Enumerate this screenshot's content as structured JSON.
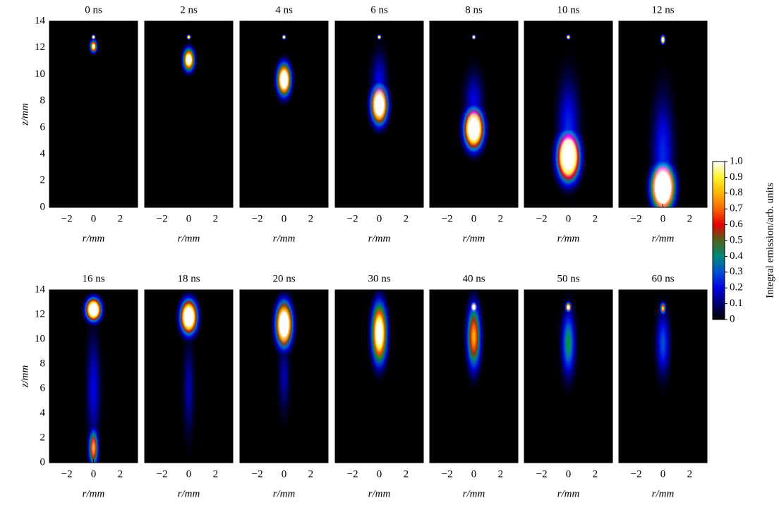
{
  "chart_data": [
    {
      "type": "heatmap",
      "title": "0 ns",
      "xlabel": "r/mm",
      "ylabel": "z/mm",
      "xlim": [
        -3.3,
        3.3
      ],
      "ylim": [
        0,
        14
      ],
      "xticks": [
        {
          "value": -2,
          "label": "−2"
        },
        0,
        2
      ],
      "yticks": [
        0,
        2,
        4,
        6,
        8,
        10,
        12,
        14
      ],
      "emission": [
        {
          "z": 12.8,
          "dz": 0.2,
          "dr": 0.12,
          "peak": 1.5
        },
        {
          "z": 12.1,
          "dz": 0.6,
          "dr": 0.25,
          "peak": 1.1
        }
      ]
    },
    {
      "type": "heatmap",
      "title": "2 ns",
      "xlabel": "r/mm",
      "xlim": [
        -3.3,
        3.3
      ],
      "ylim": [
        0,
        14
      ],
      "xticks": [
        {
          "value": -2,
          "label": "−2"
        },
        0,
        2
      ],
      "yticks": [
        0,
        2,
        4,
        6,
        8,
        10,
        12,
        14
      ],
      "emission": [
        {
          "z": 12.8,
          "dz": 0.2,
          "dr": 0.12,
          "peak": 1.5
        },
        {
          "z": 11.1,
          "dz": 1.1,
          "dr": 0.4,
          "peak": 1.3
        }
      ]
    },
    {
      "type": "heatmap",
      "title": "4 ns",
      "xlabel": "r/mm",
      "xlim": [
        -3.3,
        3.3
      ],
      "ylim": [
        0,
        14
      ],
      "xticks": [
        {
          "value": -2,
          "label": "−2"
        },
        0,
        2
      ],
      "yticks": [
        0,
        2,
        4,
        6,
        8,
        10,
        12,
        14
      ],
      "emission": [
        {
          "z": 12.8,
          "dz": 0.2,
          "dr": 0.12,
          "peak": 1.5
        },
        {
          "z": 9.6,
          "dz": 1.6,
          "dr": 0.5,
          "peak": 1.4
        }
      ]
    },
    {
      "type": "heatmap",
      "title": "6 ns",
      "xlabel": "r/mm",
      "xlim": [
        -3.3,
        3.3
      ],
      "ylim": [
        0,
        14
      ],
      "xticks": [
        {
          "value": -2,
          "label": "−2"
        },
        0,
        2
      ],
      "yticks": [
        0,
        2,
        4,
        6,
        8,
        10,
        12,
        14
      ],
      "emission": [
        {
          "z": 12.8,
          "dz": 0.2,
          "dr": 0.12,
          "peak": 1.5
        },
        {
          "z": 9.5,
          "dz": 3,
          "dr": 0.6,
          "peak": 0.2
        },
        {
          "z": 7.7,
          "dz": 1.9,
          "dr": 0.6,
          "peak": 1.5
        }
      ]
    },
    {
      "type": "heatmap",
      "title": "8 ns",
      "xlabel": "r/mm",
      "xlim": [
        -3.3,
        3.3
      ],
      "ylim": [
        0,
        14
      ],
      "xticks": [
        {
          "value": -2,
          "label": "−2"
        },
        0,
        2
      ],
      "yticks": [
        0,
        2,
        4,
        6,
        8,
        10,
        12,
        14
      ],
      "emission": [
        {
          "z": 12.8,
          "dz": 0.2,
          "dr": 0.12,
          "peak": 1.5
        },
        {
          "z": 8,
          "dz": 3,
          "dr": 0.7,
          "peak": 0.2
        },
        {
          "z": 5.9,
          "dz": 2,
          "dr": 0.7,
          "peak": 1.6
        }
      ]
    },
    {
      "type": "heatmap",
      "title": "10 ns",
      "xlabel": "r/mm",
      "xlim": [
        -3.3,
        3.3
      ],
      "ylim": [
        0,
        14
      ],
      "xticks": [
        {
          "value": -2,
          "label": "−2"
        },
        0,
        2
      ],
      "yticks": [
        0,
        2,
        4,
        6,
        8,
        10,
        12,
        14
      ],
      "emission": [
        {
          "z": 12.8,
          "dz": 0.2,
          "dr": 0.12,
          "peak": 1.5
        },
        {
          "z": 6,
          "dz": 5,
          "dr": 0.8,
          "peak": 0.25
        },
        {
          "z": 3.8,
          "dz": 2.4,
          "dr": 0.8,
          "peak": 1.7
        }
      ]
    },
    {
      "type": "heatmap",
      "title": "12 ns",
      "xlabel": "r/mm",
      "xlim": [
        -3.3,
        3.3
      ],
      "ylim": [
        0,
        14
      ],
      "xticks": [
        {
          "value": -2,
          "label": "−2"
        },
        0,
        2
      ],
      "yticks": [
        0,
        2,
        4,
        6,
        8,
        10,
        12,
        14
      ],
      "emission": [
        {
          "z": 12.6,
          "dz": 0.4,
          "dr": 0.15,
          "peak": 1.5
        },
        {
          "z": 4,
          "dz": 6,
          "dr": 0.8,
          "peak": 0.25
        },
        {
          "z": 1.5,
          "dz": 2.2,
          "dr": 0.8,
          "peak": 2
        }
      ]
    },
    {
      "type": "heatmap",
      "title": "16 ns",
      "xlabel": "r/mm",
      "ylabel": "z/mm",
      "xlim": [
        -3.3,
        3.3
      ],
      "ylim": [
        0,
        14
      ],
      "xticks": [
        {
          "value": -2,
          "label": "−2"
        },
        0,
        2
      ],
      "yticks": [
        0,
        2,
        4,
        6,
        8,
        10,
        12,
        14
      ],
      "emission": [
        {
          "z": 6,
          "dz": 6,
          "dr": 0.5,
          "peak": 0.2
        },
        {
          "z": 12.4,
          "dz": 1.2,
          "dr": 0.55,
          "peak": 1.6
        },
        {
          "z": 1.2,
          "dz": 2,
          "dr": 0.35,
          "peak": 0.8
        }
      ]
    },
    {
      "type": "heatmap",
      "title": "18 ns",
      "xlabel": "r/mm",
      "xlim": [
        -3.3,
        3.3
      ],
      "ylim": [
        0,
        14
      ],
      "xticks": [
        {
          "value": -2,
          "label": "−2"
        },
        0,
        2
      ],
      "yticks": [
        0,
        2,
        4,
        6,
        8,
        10,
        12,
        14
      ],
      "emission": [
        {
          "z": 6,
          "dz": 5,
          "dr": 0.4,
          "peak": 0.15
        },
        {
          "z": 11.8,
          "dz": 1.8,
          "dr": 0.6,
          "peak": 1.6
        }
      ]
    },
    {
      "type": "heatmap",
      "title": "20 ns",
      "xlabel": "r/mm",
      "xlim": [
        -3.3,
        3.3
      ],
      "ylim": [
        0,
        14
      ],
      "xticks": [
        {
          "value": -2,
          "label": "−2"
        },
        0,
        2
      ],
      "yticks": [
        0,
        2,
        4,
        6,
        8,
        10,
        12,
        14
      ],
      "emission": [
        {
          "z": 7,
          "dz": 4,
          "dr": 0.4,
          "peak": 0.15
        },
        {
          "z": 11.2,
          "dz": 2.4,
          "dr": 0.6,
          "peak": 1.5
        }
      ]
    },
    {
      "type": "heatmap",
      "title": "30 ns",
      "xlabel": "r/mm",
      "xlim": [
        -3.3,
        3.3
      ],
      "ylim": [
        0,
        14
      ],
      "xticks": [
        {
          "value": -2,
          "label": "−2"
        },
        0,
        2
      ],
      "yticks": [
        0,
        2,
        4,
        6,
        8,
        10,
        12,
        14
      ],
      "emission": [
        {
          "z": 10.5,
          "dz": 3.2,
          "dr": 0.55,
          "peak": 1.3
        }
      ]
    },
    {
      "type": "heatmap",
      "title": "40 ns",
      "xlabel": "r/mm",
      "xlim": [
        -3.3,
        3.3
      ],
      "ylim": [
        0,
        14
      ],
      "xticks": [
        {
          "value": -2,
          "label": "−2"
        },
        0,
        2
      ],
      "yticks": [
        0,
        2,
        4,
        6,
        8,
        10,
        12,
        14
      ],
      "emission": [
        {
          "z": 10.2,
          "dz": 3.5,
          "dr": 0.5,
          "peak": 0.8
        },
        {
          "z": 12.6,
          "dz": 0.5,
          "dr": 0.2,
          "peak": 1.3
        }
      ]
    },
    {
      "type": "heatmap",
      "title": "50 ns",
      "xlabel": "r/mm",
      "xlim": [
        -3.3,
        3.3
      ],
      "ylim": [
        0,
        14
      ],
      "xticks": [
        {
          "value": -2,
          "label": "−2"
        },
        0,
        2
      ],
      "yticks": [
        0,
        2,
        4,
        6,
        8,
        10,
        12,
        14
      ],
      "emission": [
        {
          "z": 9.7,
          "dz": 3.6,
          "dr": 0.5,
          "peak": 0.45
        },
        {
          "z": 12.6,
          "dz": 0.5,
          "dr": 0.2,
          "peak": 1.2
        }
      ]
    },
    {
      "type": "heatmap",
      "title": "60 ns",
      "xlabel": "r/mm",
      "xlim": [
        -3.3,
        3.3
      ],
      "ylim": [
        0,
        14
      ],
      "xticks": [
        {
          "value": -2,
          "label": "−2"
        },
        0,
        2
      ],
      "yticks": [
        0,
        2,
        4,
        6,
        8,
        10,
        12,
        14
      ],
      "emission": [
        {
          "z": 9.7,
          "dz": 3.6,
          "dr": 0.5,
          "peak": 0.3
        },
        {
          "z": 12.5,
          "dz": 0.6,
          "dr": 0.2,
          "peak": 0.9
        }
      ]
    }
  ],
  "colorbar": {
    "label": "Integral emission/arb. units",
    "ylim": [
      0,
      1
    ],
    "yticks": [
      0,
      0.1,
      0.2,
      0.3,
      0.4,
      0.5,
      0.6,
      0.7,
      0.8,
      0.9,
      {
        "value": 1,
        "label": "1.0"
      }
    ]
  }
}
